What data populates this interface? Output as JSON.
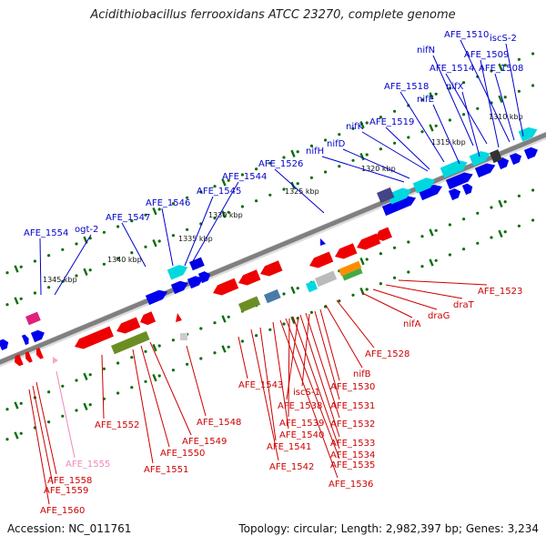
{
  "title": "Acidithiobacillus ferrooxidans ATCC 23270, complete genome",
  "footer": {
    "accession": "Accession: NC_011761",
    "summary": "Topology: circular; Length: 2,982,397 bp; Genes: 3,234"
  },
  "colors": {
    "forward_label": "#0000cc",
    "reverse_label": "#cc0000",
    "pseudo_label": "#ee88bb",
    "backbone": "#808080",
    "tick": "#0a6e0a",
    "cds_forward": "#0000ee",
    "cds_reverse": "#ee0000",
    "rna": "#00d8e0"
  },
  "scale_ticks": [
    "1310 kbp",
    "1315 kbp",
    "1320 kbp",
    "1325 kbp",
    "1330 kbp",
    "1335 kbp",
    "1340 kbp",
    "1345 kbp"
  ],
  "top_labels": [
    "AFE_1510",
    "iscS-2",
    "AFE_1509",
    "nifN",
    "AFE_1514",
    "AFE_1508",
    "AFE_1518",
    "nifX",
    "nifE",
    "nifK",
    "AFE_1519",
    "nifD",
    "nifH",
    "AFE_1526",
    "AFE_1544",
    "AFE_1545",
    "AFE_1546",
    "AFE_1547",
    "AFE_1554",
    "ogt-2"
  ],
  "bottom_labels": [
    "AFE_1523",
    "draT",
    "draG",
    "nifA",
    "AFE_1528",
    "nifB",
    "AFE_1530",
    "iscS-1",
    "AFE_1531",
    "AFE_1543",
    "AFE_1538",
    "AFE_1532",
    "AFE_1539",
    "AFE_1540",
    "AFE_1533",
    "AFE_1541",
    "AFE_1534",
    "AFE_1542",
    "AFE_1535",
    "AFE_1536",
    "AFE_1548",
    "AFE_1549",
    "AFE_1550",
    "AFE_1551",
    "AFE_1552",
    "AFE_1555",
    "AFE_1558",
    "AFE_1559",
    "AFE_1560"
  ]
}
